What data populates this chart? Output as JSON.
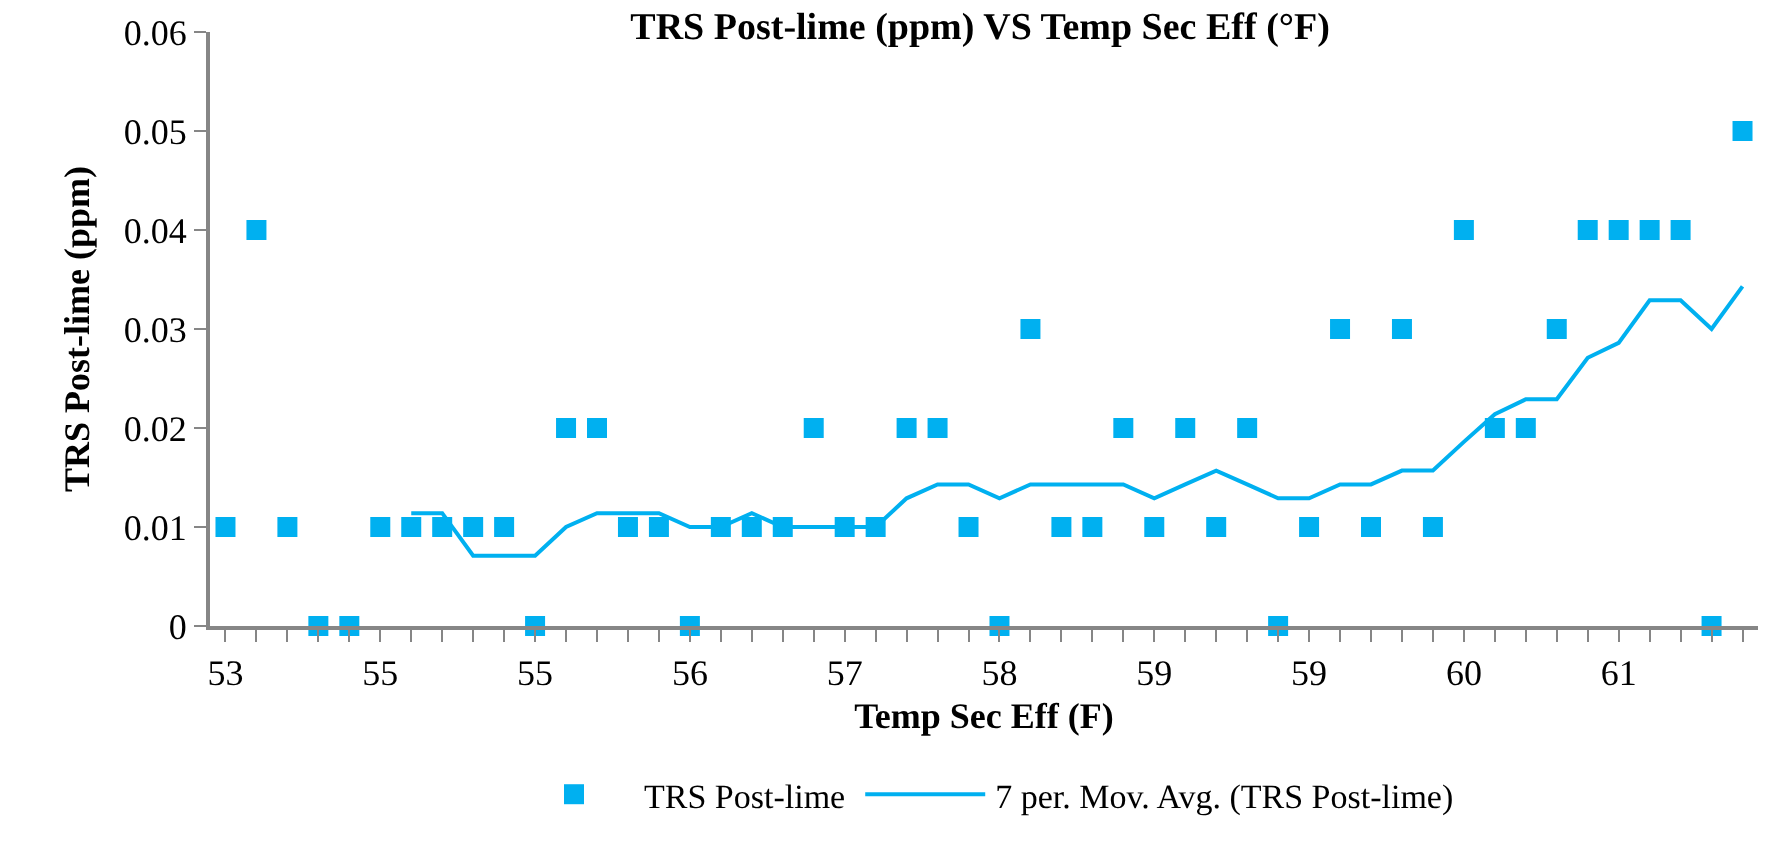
{
  "chart_data": {
    "type": "scatter",
    "title": "TRS Post-lime (ppm) VS Temp Sec Eff (°F)",
    "xlabel": "Temp Sec Eff (F)",
    "ylabel": "TRS Post-lime (ppm)",
    "categories": [
      "53",
      null,
      null,
      null,
      null,
      "55",
      null,
      null,
      null,
      null,
      "55",
      null,
      null,
      null,
      null,
      "56",
      null,
      null,
      null,
      null,
      "57",
      null,
      null,
      null,
      null,
      "58",
      null,
      null,
      null,
      null,
      "59",
      null,
      null,
      null,
      null,
      "59",
      null,
      null,
      null,
      null,
      "60",
      null,
      null,
      null,
      null,
      "61",
      null,
      null,
      null,
      null
    ],
    "series": [
      {
        "name": "TRS Post-lime",
        "marker": "square",
        "color": "#00b0f0",
        "values": [
          0.01,
          0.04,
          0.01,
          0,
          0,
          0.01,
          0.01,
          0.01,
          0.01,
          0.01,
          0,
          0.02,
          0.02,
          0.01,
          0.01,
          0,
          0.01,
          0.01,
          0.01,
          0.02,
          0.01,
          0.01,
          0.02,
          0.02,
          0.01,
          0,
          0.03,
          0.01,
          0.01,
          0.02,
          0.01,
          0.02,
          0.01,
          0.02,
          0,
          0.01,
          0.03,
          0.01,
          0.03,
          0.01,
          0.04,
          0.02,
          0.02,
          0.03,
          0.04,
          0.04,
          0.04,
          0.04,
          0,
          0.05
        ]
      },
      {
        "name": "7 per. Mov. Avg. (TRS Post-lime)",
        "type": "line",
        "marker": "none",
        "line_style": "solid",
        "color": "#00b0f0",
        "values": [
          null,
          null,
          null,
          null,
          null,
          null,
          0.0114,
          0.0114,
          0.0071,
          0.0071,
          0.0071,
          0.01,
          0.0114,
          0.0114,
          0.0114,
          0.01,
          0.01,
          0.0114,
          0.01,
          0.01,
          0.01,
          0.01,
          0.0129,
          0.0143,
          0.0143,
          0.0129,
          0.0143,
          0.0143,
          0.0143,
          0.0143,
          0.0129,
          0.0143,
          0.0157,
          0.0143,
          0.0129,
          0.0129,
          0.0143,
          0.0143,
          0.0157,
          0.0157,
          0.0186,
          0.0214,
          0.0229,
          0.0229,
          0.0271,
          0.0286,
          0.0329,
          0.0329,
          0.03,
          0.0343
        ]
      }
    ],
    "ylim": [
      0,
      0.06
    ],
    "yticks": [
      0,
      0.01,
      0.02,
      0.03,
      0.04,
      0.05,
      0.06
    ],
    "grid": false,
    "legend": "bottom"
  }
}
